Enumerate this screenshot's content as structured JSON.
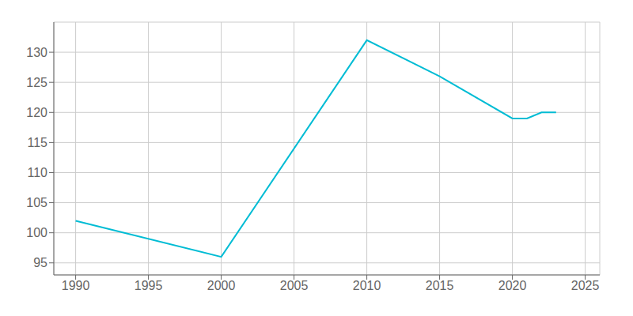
{
  "chart_data": {
    "type": "line",
    "x": [
      1990,
      2000,
      2010,
      2015,
      2020,
      2021,
      2022,
      2023
    ],
    "values": [
      102,
      96,
      132,
      126,
      119,
      119,
      120,
      120
    ],
    "color": "#00BCD4",
    "xlim": [
      1988.5,
      2026
    ],
    "ylim": [
      93,
      135
    ],
    "xticks": [
      1990,
      1995,
      2000,
      2005,
      2010,
      2015,
      2020,
      2025
    ],
    "yticks": [
      95,
      100,
      105,
      110,
      115,
      120,
      125,
      130
    ],
    "grid": true
  }
}
